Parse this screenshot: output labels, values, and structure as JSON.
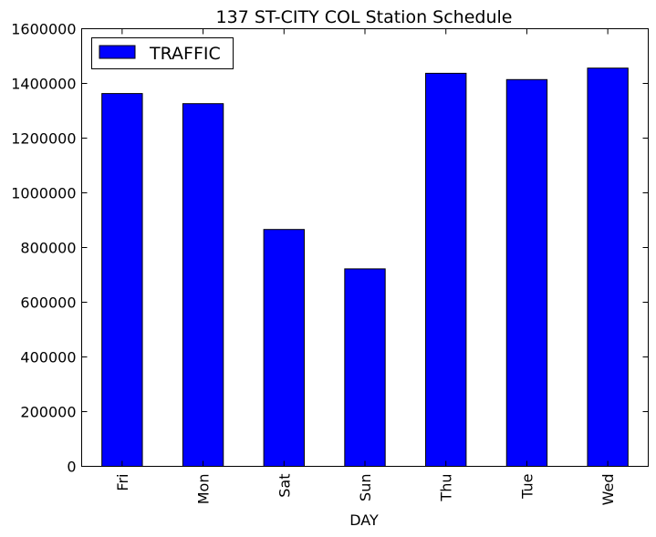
{
  "chart_data": {
    "type": "bar",
    "title": "137 ST-CITY COL Station Schedule",
    "xlabel": "DAY",
    "ylabel": "",
    "categories": [
      "Fri",
      "Mon",
      "Sat",
      "Sun",
      "Thu",
      "Tue",
      "Wed"
    ],
    "series": [
      {
        "name": "TRAFFIC",
        "color": "#0000ff",
        "values": [
          1363000,
          1326000,
          866000,
          722000,
          1437000,
          1414000,
          1456000
        ]
      }
    ],
    "ylim": [
      0,
      1600000
    ],
    "yticks": [
      "0",
      "200000",
      "400000",
      "600000",
      "800000",
      "1000000",
      "1200000",
      "1400000",
      "1600000"
    ],
    "legend_position": "top-left",
    "grid": false
  }
}
